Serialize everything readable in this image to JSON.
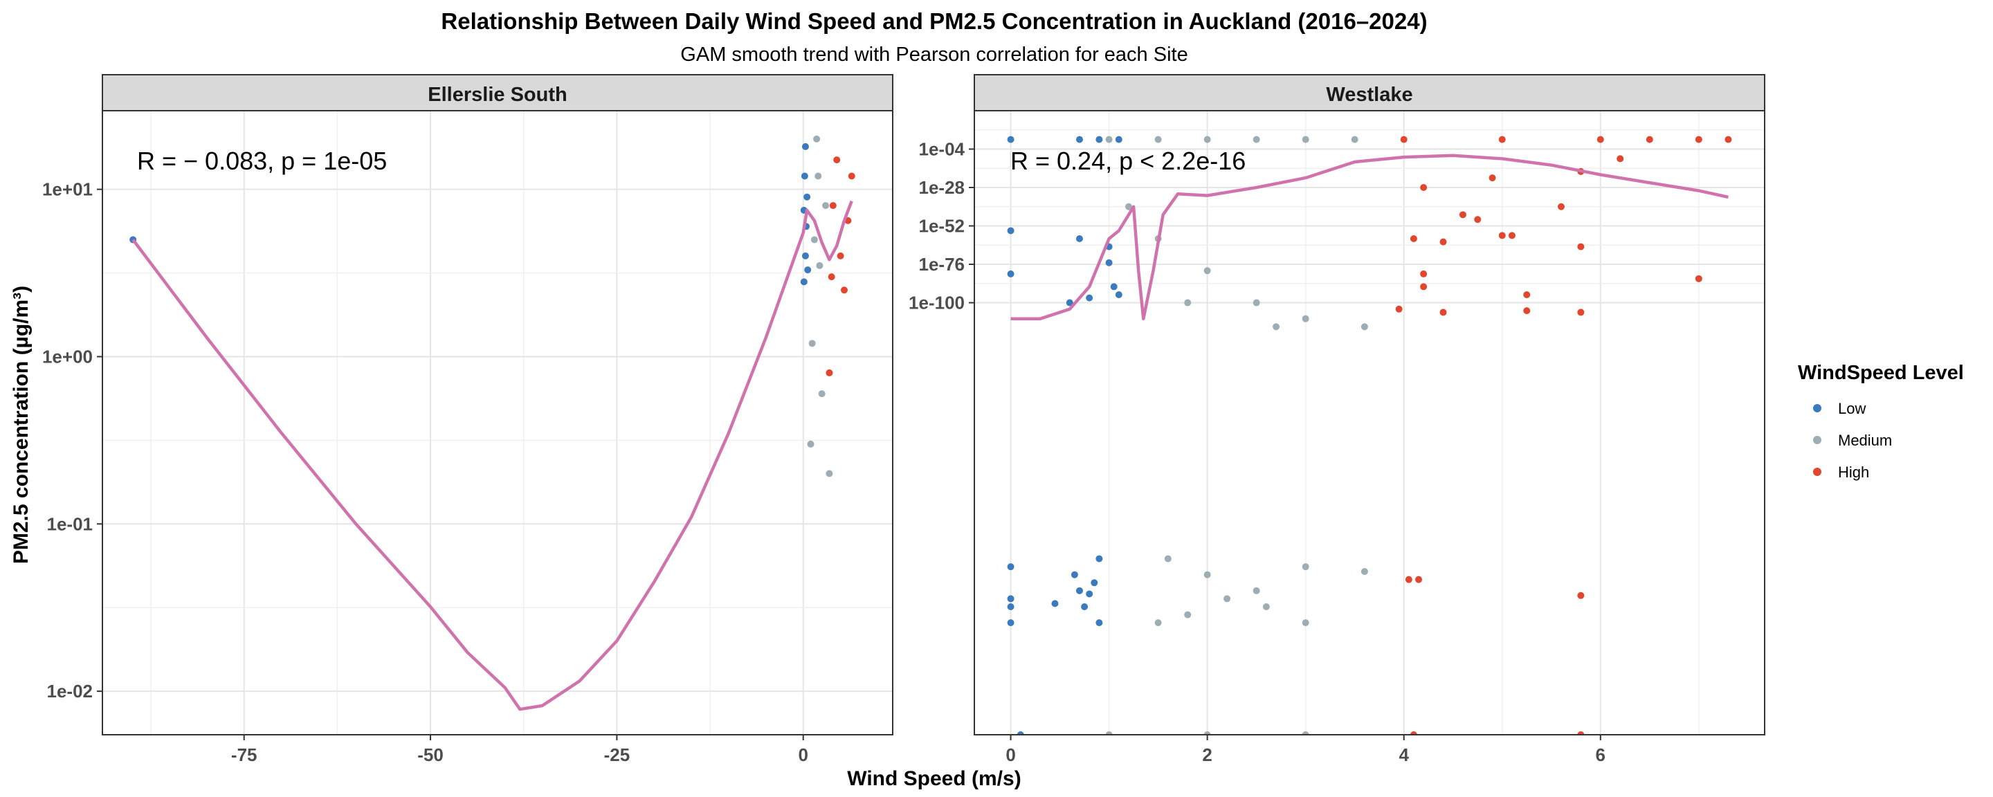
{
  "chart_data": {
    "type": "scatter",
    "title": "Relationship Between Daily Wind Speed and  PM2.5  Concentration in Auckland (2016–2024)",
    "subtitle": "GAM smooth trend with Pearson correlation for each Site",
    "xlabel": "Wind Speed (m/s)",
    "ylabel": "PM2.5  concentration (µg/m³)",
    "legend": {
      "title": "WindSpeed Level",
      "position": "right",
      "entries": [
        {
          "label": "Low",
          "color": "#3a7bbf"
        },
        {
          "label": "Medium",
          "color": "#9eacb3"
        },
        {
          "label": "High",
          "color": "#e2462f"
        }
      ]
    },
    "grid": true,
    "smooth_color": "#d073ad",
    "panels": [
      {
        "name": "Ellerslie South",
        "annotation": {
          "r": "R = − 0.083, ",
          "p": "p = 1e-05"
        },
        "xlim": [
          -94,
          12
        ],
        "x_ticks": [
          -75,
          -50,
          -25,
          0
        ],
        "x_tick_labels": [
          "-75",
          "-50",
          "-25",
          "0"
        ],
        "y_scale": "log10",
        "ylim_log10": [
          -2.26,
          1.47
        ],
        "y_ticks_log10": [
          1,
          0,
          -1,
          -2
        ],
        "y_tick_labels": [
          "1e+01",
          "1e+00",
          "1e-01",
          "1e-02"
        ],
        "smooth": [
          [
            -89.9,
            5.0
          ],
          [
            -80,
            1.3
          ],
          [
            -70,
            0.35
          ],
          [
            -60,
            0.1
          ],
          [
            -50,
            0.032
          ],
          [
            -45,
            0.017
          ],
          [
            -40,
            0.0105
          ],
          [
            -38,
            0.0078
          ],
          [
            -35,
            0.0082
          ],
          [
            -30,
            0.0115
          ],
          [
            -25,
            0.02
          ],
          [
            -20,
            0.045
          ],
          [
            -15,
            0.11
          ],
          [
            -10,
            0.35
          ],
          [
            -5,
            1.3
          ],
          [
            0,
            5.5
          ],
          [
            0.5,
            7.5
          ],
          [
            1.5,
            6.5
          ],
          [
            2.5,
            4.8
          ],
          [
            3.5,
            3.8
          ],
          [
            4.5,
            4.6
          ],
          [
            5.5,
            6.5
          ],
          [
            6.5,
            8.5
          ]
        ],
        "points": {
          "Low": [
            [
              -89.9,
              5.0
            ],
            [
              0.3,
              4.0
            ],
            [
              0.2,
              12.0
            ],
            [
              0.4,
              6.0
            ],
            [
              0.1,
              2.8
            ],
            [
              0.3,
              18.0
            ],
            [
              0.5,
              9.0
            ],
            [
              0.2,
              0.0052
            ],
            [
              0.6,
              3.3
            ],
            [
              0.1,
              7.5
            ]
          ],
          "Medium": [
            [
              1.5,
              5.0
            ],
            [
              2.0,
              12.0
            ],
            [
              1.0,
              0.3
            ],
            [
              3.5,
              0.2
            ],
            [
              2.5,
              0.6
            ],
            [
              1.8,
              20.0
            ],
            [
              3.0,
              8.0
            ],
            [
              2.2,
              3.5
            ],
            [
              1.2,
              1.2
            ],
            [
              2.8,
              0.0052
            ]
          ],
          "High": [
            [
              4.0,
              8.0
            ],
            [
              5.0,
              4.0
            ],
            [
              6.5,
              12.0
            ],
            [
              3.5,
              0.8
            ],
            [
              5.5,
              2.5
            ],
            [
              4.5,
              15.0
            ],
            [
              6.0,
              6.5
            ],
            [
              3.8,
              3.0
            ],
            [
              5.2,
              0.0052
            ]
          ]
        }
      },
      {
        "name": "Westlake",
        "annotation": {
          "r": "R = 0.24, ",
          "p": "p < 2.2e-16"
        },
        "xlim": [
          -0.37,
          7.67
        ],
        "x_ticks": [
          0,
          2,
          4,
          6
        ],
        "x_tick_labels": [
          "0",
          "2",
          "4",
          "6"
        ],
        "y_scale": "log10",
        "ylim_log10": [
          -370,
          20
        ],
        "y_ticks_log10": [
          -4,
          -28,
          -52,
          -76,
          -100
        ],
        "y_tick_labels": [
          "1e-04",
          "1e-28",
          "1e-52",
          "1e-76",
          "1e-100"
        ],
        "smooth": [
          [
            0,
            -110
          ],
          [
            0.3,
            -110
          ],
          [
            0.6,
            -104
          ],
          [
            0.8,
            -90
          ],
          [
            1.0,
            -60
          ],
          [
            1.1,
            -55
          ],
          [
            1.25,
            -40
          ],
          [
            1.3,
            -80
          ],
          [
            1.35,
            -110
          ],
          [
            1.45,
            -80
          ],
          [
            1.55,
            -45
          ],
          [
            1.7,
            -32
          ],
          [
            2.0,
            -33
          ],
          [
            2.5,
            -28
          ],
          [
            3.0,
            -22
          ],
          [
            3.5,
            -12
          ],
          [
            4.0,
            -9
          ],
          [
            4.5,
            -8
          ],
          [
            5.0,
            -10
          ],
          [
            5.5,
            -14
          ],
          [
            6.0,
            -20
          ],
          [
            6.5,
            -25
          ],
          [
            7.0,
            -30
          ],
          [
            7.3,
            -34
          ]
        ],
        "points": {
          "Low": [
            [
              0,
              2
            ],
            [
              0,
              -55
            ],
            [
              0,
              -82
            ],
            [
              0,
              -265
            ],
            [
              0,
              -285
            ],
            [
              0,
              -290
            ],
            [
              0,
              -300
            ],
            [
              0.1,
              -370
            ],
            [
              0.45,
              -288
            ],
            [
              0.65,
              -270
            ],
            [
              0.7,
              -280
            ],
            [
              0.75,
              -290
            ],
            [
              0.8,
              -282
            ],
            [
              0.85,
              -275
            ],
            [
              0.9,
              -260
            ],
            [
              0.9,
              -300
            ],
            [
              1.0,
              -65
            ],
            [
              1.0,
              -75
            ],
            [
              1.05,
              -90
            ],
            [
              1.1,
              -95
            ],
            [
              0.7,
              -60
            ],
            [
              0.8,
              -97
            ],
            [
              0.6,
              -100
            ],
            [
              0.9,
              2
            ],
            [
              0.7,
              2
            ],
            [
              1.1,
              2
            ]
          ],
          "Medium": [
            [
              1.0,
              2
            ],
            [
              1.5,
              2
            ],
            [
              2.0,
              2
            ],
            [
              2.5,
              2
            ],
            [
              3.0,
              2
            ],
            [
              3.5,
              2
            ],
            [
              1.2,
              -40
            ],
            [
              1.5,
              -60
            ],
            [
              2.0,
              -80
            ],
            [
              2.5,
              -100
            ],
            [
              3.0,
              -110
            ],
            [
              3.6,
              -115
            ],
            [
              2.7,
              -115
            ],
            [
              1.8,
              -100
            ],
            [
              1.6,
              -260
            ],
            [
              2.0,
              -270
            ],
            [
              2.5,
              -280
            ],
            [
              3.0,
              -300
            ],
            [
              3.6,
              -268
            ],
            [
              3.0,
              -265
            ],
            [
              2.6,
              -290
            ],
            [
              2.2,
              -285
            ],
            [
              1.8,
              -295
            ],
            [
              1.5,
              -300
            ],
            [
              2.0,
              -370
            ],
            [
              3.0,
              -370
            ],
            [
              1.0,
              -370
            ]
          ],
          "High": [
            [
              4.0,
              2
            ],
            [
              5.0,
              2
            ],
            [
              6.0,
              2
            ],
            [
              7.0,
              2
            ],
            [
              7.3,
              2
            ],
            [
              6.5,
              2
            ],
            [
              6.2,
              -10
            ],
            [
              5.8,
              -18
            ],
            [
              4.9,
              -22
            ],
            [
              4.2,
              -28
            ],
            [
              5.6,
              -40
            ],
            [
              4.1,
              -60
            ],
            [
              4.4,
              -62
            ],
            [
              4.6,
              -45
            ],
            [
              4.75,
              -48
            ],
            [
              5.0,
              -58
            ],
            [
              5.1,
              -58
            ],
            [
              5.8,
              -65
            ],
            [
              7.0,
              -85
            ],
            [
              4.2,
              -82
            ],
            [
              4.2,
              -90
            ],
            [
              3.95,
              -104
            ],
            [
              4.4,
              -106
            ],
            [
              5.25,
              -95
            ],
            [
              5.25,
              -105
            ],
            [
              5.8,
              -106
            ],
            [
              4.05,
              -273
            ],
            [
              4.15,
              -273
            ],
            [
              5.8,
              -283
            ],
            [
              5.8,
              -370
            ],
            [
              4.1,
              -370
            ]
          ]
        }
      }
    ]
  }
}
